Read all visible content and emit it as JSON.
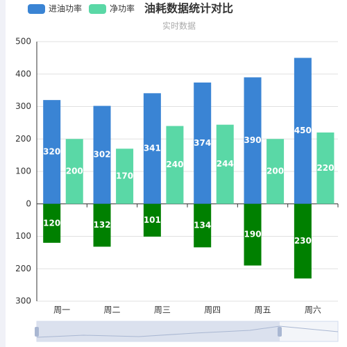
{
  "chart_data": {
    "type": "bar",
    "title": "油耗数据统计对比",
    "subtitle": "实时数据",
    "categories": [
      "周一",
      "周二",
      "周三",
      "周四",
      "周五",
      "周六"
    ],
    "series": [
      {
        "name": "进油功率",
        "color": "#3a84d4",
        "values": [
          320,
          302,
          341,
          374,
          390,
          450
        ]
      },
      {
        "name": "净功率",
        "color": "#5ad8a6",
        "values": [
          200,
          170,
          240,
          244,
          200,
          220
        ]
      },
      {
        "color": "#008000",
        "values": [
          -120,
          -132,
          -101,
          -134,
          -190,
          -230
        ],
        "value_labels": [
          "120",
          "132",
          "101",
          "134",
          "190",
          "230"
        ]
      }
    ],
    "ylim": [
      -300,
      500
    ],
    "yticks": [
      500,
      400,
      300,
      200,
      100,
      0,
      {
        "value": -100,
        "label": "100"
      },
      {
        "value": -200,
        "label": "200"
      },
      {
        "value": -300,
        "label": "300"
      }
    ],
    "grid": true
  }
}
